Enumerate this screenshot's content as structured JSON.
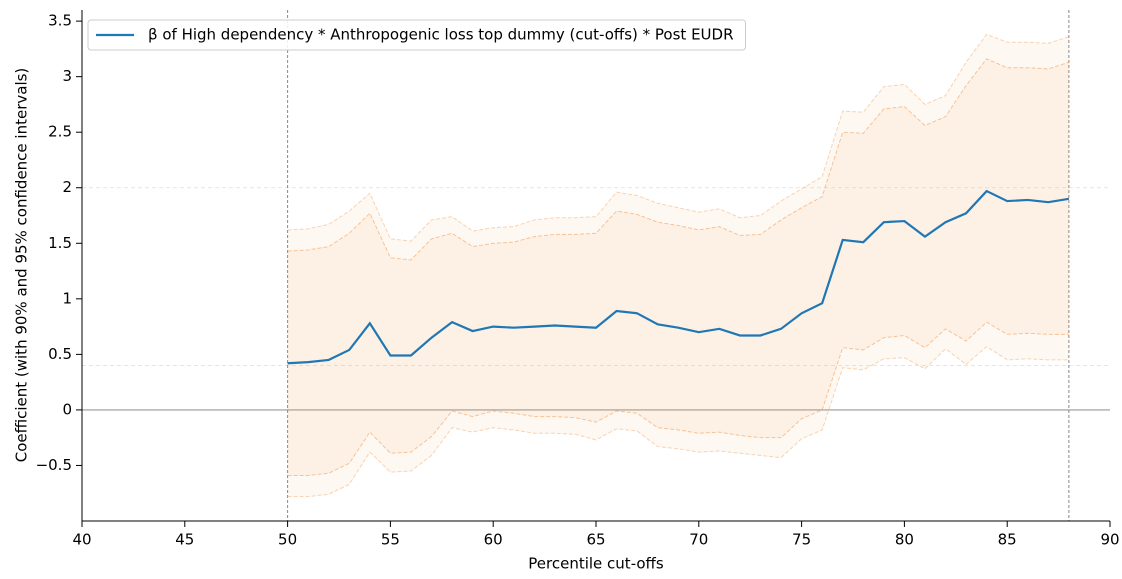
{
  "chart_data": {
    "type": "line",
    "x_label": "Percentile cut-offs",
    "y_label": "Coefficient (with 90% and 95% confidence intervals)",
    "xlim": [
      40,
      90
    ],
    "xticks": [
      40,
      45,
      50,
      55,
      60,
      65,
      70,
      75,
      80,
      85,
      90
    ],
    "ylim": [
      -1,
      3.6
    ],
    "yticks": [
      {
        "value": -0.5,
        "label": "−0.5"
      },
      0,
      0.5,
      1,
      1.5,
      2,
      2.5,
      3,
      3.5
    ],
    "x": [
      50,
      51,
      52,
      53,
      54,
      55,
      56,
      57,
      58,
      59,
      60,
      61,
      62,
      63,
      64,
      65,
      66,
      67,
      68,
      69,
      70,
      71,
      72,
      73,
      74,
      75,
      76,
      77,
      78,
      79,
      80,
      81,
      82,
      83,
      84,
      85,
      86,
      87,
      88
    ],
    "series": [
      {
        "name": "β of High dependency * Anthropogenic loss top dummy (cut-offs) * Post EUDR",
        "color": "#1f77b4",
        "values": [
          0.42,
          0.43,
          0.45,
          0.54,
          0.78,
          0.49,
          0.49,
          0.65,
          0.79,
          0.71,
          0.75,
          0.74,
          0.75,
          0.76,
          0.75,
          0.74,
          0.89,
          0.87,
          0.77,
          0.74,
          0.7,
          0.73,
          0.67,
          0.67,
          0.73,
          0.87,
          0.96,
          1.53,
          1.51,
          1.69,
          1.7,
          1.56,
          1.69,
          1.77,
          1.97,
          1.88,
          1.89,
          1.87,
          1.9
        ]
      }
    ],
    "band_color": "#f5a05a",
    "ci95": {
      "upper": [
        1.62,
        1.63,
        1.67,
        1.79,
        1.95,
        1.54,
        1.52,
        1.71,
        1.74,
        1.61,
        1.64,
        1.65,
        1.71,
        1.73,
        1.73,
        1.74,
        1.96,
        1.93,
        1.86,
        1.82,
        1.78,
        1.81,
        1.73,
        1.75,
        1.88,
        1.99,
        2.1,
        2.69,
        2.68,
        2.91,
        2.93,
        2.75,
        2.83,
        3.13,
        3.38,
        3.31,
        3.31,
        3.3,
        3.36
      ],
      "lower": [
        -0.78,
        -0.78,
        -0.76,
        -0.67,
        -0.38,
        -0.56,
        -0.55,
        -0.41,
        -0.16,
        -0.2,
        -0.16,
        -0.18,
        -0.21,
        -0.21,
        -0.22,
        -0.27,
        -0.17,
        -0.19,
        -0.33,
        -0.35,
        -0.38,
        -0.37,
        -0.39,
        -0.41,
        -0.43,
        -0.26,
        -0.18,
        0.38,
        0.36,
        0.46,
        0.47,
        0.37,
        0.55,
        0.41,
        0.57,
        0.45,
        0.46,
        0.45,
        0.45
      ]
    },
    "ci90": {
      "upper": [
        1.43,
        1.44,
        1.47,
        1.59,
        1.77,
        1.37,
        1.35,
        1.54,
        1.59,
        1.47,
        1.5,
        1.51,
        1.56,
        1.58,
        1.58,
        1.59,
        1.79,
        1.76,
        1.69,
        1.66,
        1.62,
        1.65,
        1.57,
        1.58,
        1.71,
        1.82,
        1.92,
        2.5,
        2.49,
        2.71,
        2.73,
        2.56,
        2.64,
        2.92,
        3.16,
        3.08,
        3.08,
        3.07,
        3.13
      ],
      "lower": [
        -0.59,
        -0.59,
        -0.57,
        -0.48,
        -0.2,
        -0.39,
        -0.38,
        -0.24,
        -0.01,
        -0.06,
        -0.01,
        -0.03,
        -0.06,
        -0.06,
        -0.07,
        -0.11,
        -0.01,
        -0.03,
        -0.16,
        -0.18,
        -0.21,
        -0.2,
        -0.23,
        -0.25,
        -0.25,
        -0.08,
        0.0,
        0.56,
        0.54,
        0.65,
        0.67,
        0.56,
        0.73,
        0.62,
        0.79,
        0.68,
        0.69,
        0.68,
        0.68
      ]
    },
    "vlines": [
      50,
      88
    ],
    "hlines": [
      0
    ],
    "dashed_hlines": [
      2,
      0.4
    ],
    "legend": "upper left"
  }
}
